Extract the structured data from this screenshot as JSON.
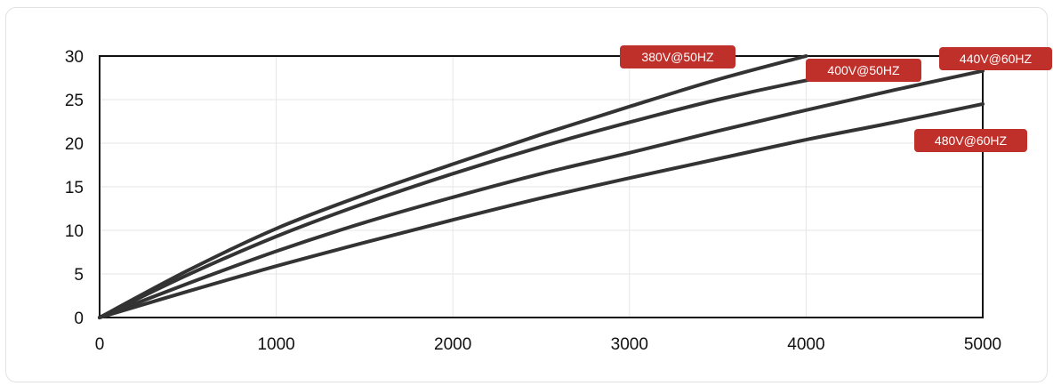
{
  "chart_data": {
    "type": "line",
    "title": "",
    "xlabel": "",
    "ylabel": "",
    "xlim": [
      0,
      5000
    ],
    "ylim": [
      0,
      30
    ],
    "x_ticks": [
      "0",
      "1000",
      "2000",
      "3000",
      "4000",
      "5000"
    ],
    "y_ticks": [
      "0",
      "5",
      "10",
      "15",
      "20",
      "25",
      "30"
    ],
    "grid": true,
    "line_color": "#333333",
    "label_color": "#c0302b",
    "series": [
      {
        "name": "380V@50HZ",
        "x": [
          0,
          500,
          1000,
          1500,
          2000,
          2500,
          3000,
          3500,
          4000
        ],
        "y": [
          0,
          5.4,
          10.2,
          14.1,
          17.6,
          21.0,
          24.2,
          27.3,
          30.0
        ]
      },
      {
        "name": "400V@50HZ",
        "x": [
          0,
          500,
          1000,
          1500,
          2000,
          2500,
          3000,
          3500,
          4000,
          4500
        ],
        "y": [
          0,
          4.9,
          9.3,
          13.1,
          16.5,
          19.6,
          22.4,
          25.0,
          27.2,
          29.0
        ]
      },
      {
        "name": "440V@60HZ",
        "x": [
          0,
          500,
          1000,
          1500,
          2000,
          2500,
          3000,
          3500,
          4000,
          4500,
          5000
        ],
        "y": [
          0,
          3.9,
          7.6,
          10.9,
          13.8,
          16.5,
          18.9,
          21.4,
          23.8,
          26.1,
          28.3
        ]
      },
      {
        "name": "480V@60HZ",
        "x": [
          0,
          500,
          1000,
          1500,
          2000,
          2500,
          3000,
          3500,
          4000,
          4500,
          5000
        ],
        "y": [
          0,
          3.0,
          5.9,
          8.6,
          11.2,
          13.7,
          16.0,
          18.2,
          20.4,
          22.4,
          24.5
        ]
      }
    ]
  }
}
